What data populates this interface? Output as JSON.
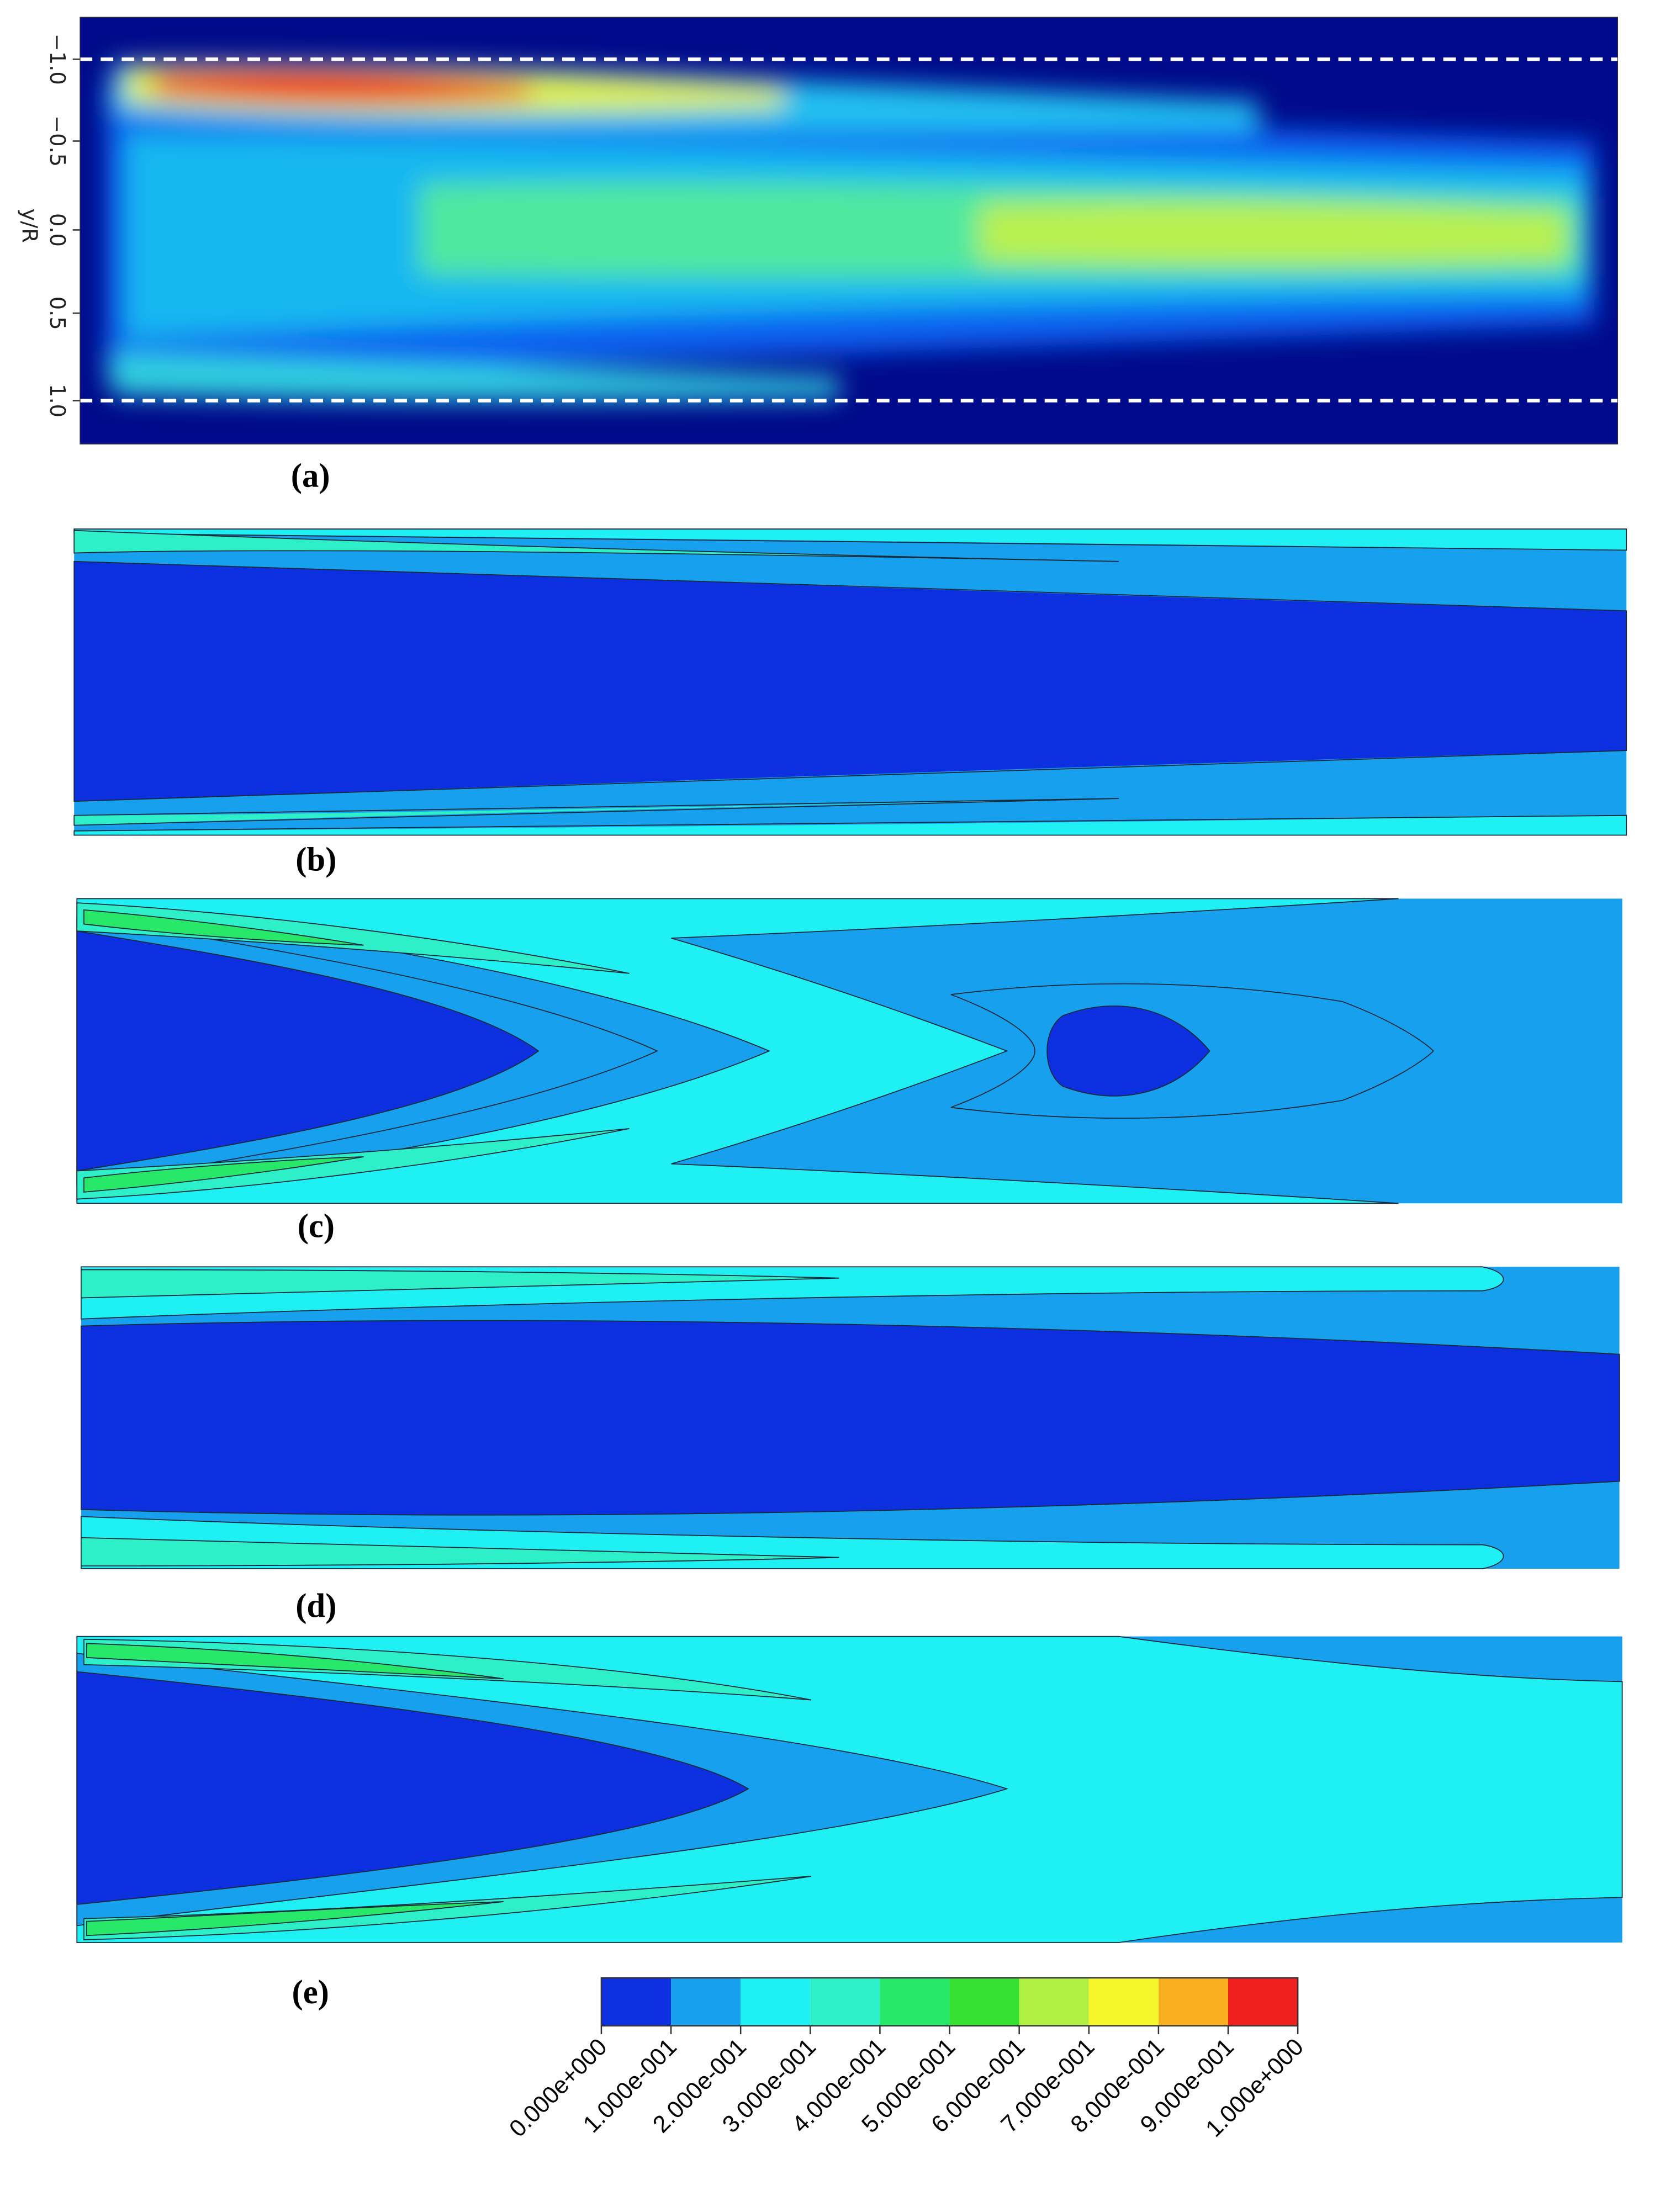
{
  "panel_a": {
    "y_axis_label": "y/R",
    "y_ticks": [
      "−1.0",
      "−0.5",
      "0.0",
      "0.5",
      "1.0"
    ]
  },
  "panel_labels": [
    "(a)",
    "(b)",
    "(c)",
    "(d)",
    "(e)"
  ],
  "colorbar": {
    "labels": [
      "0.000e+000",
      "1.000e-001",
      "2.000e-001",
      "3.000e-001",
      "4.000e-001",
      "5.000e-001",
      "6.000e-001",
      "7.000e-001",
      "8.000e-001",
      "9.000e-001",
      "1.000e+000"
    ],
    "colors": [
      "#0c2fe0",
      "#17a0ee",
      "#1ff0f4",
      "#2ef0c8",
      "#28e86a",
      "#34e030",
      "#b0f040",
      "#f6f62a",
      "#f8b020",
      "#f02020"
    ]
  }
}
